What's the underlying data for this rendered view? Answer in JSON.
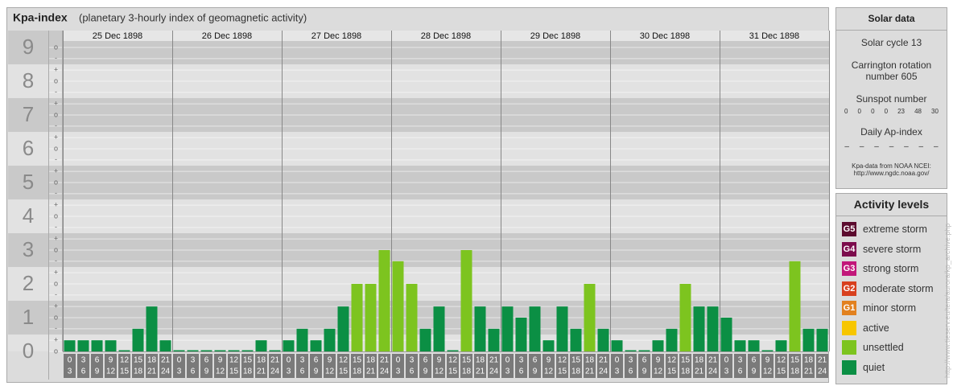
{
  "chart_data": {
    "type": "bar",
    "title": "Kpa-index",
    "subtitle": "(planetary 3-hourly index of geomagnetic activity)",
    "days": [
      "25 Dec 1898",
      "26 Dec 1898",
      "27 Dec 1898",
      "28 Dec 1898",
      "29 Dec 1898",
      "30 Dec 1898",
      "31 Dec 1898"
    ],
    "hours": [
      [
        0,
        3
      ],
      [
        3,
        6
      ],
      [
        6,
        9
      ],
      [
        9,
        12
      ],
      [
        12,
        15
      ],
      [
        15,
        18
      ],
      [
        18,
        21
      ],
      [
        21,
        24
      ]
    ],
    "values": [
      0.33,
      0.33,
      0.33,
      0.33,
      0,
      0.67,
      1.33,
      0.33,
      0,
      0,
      0,
      0,
      0,
      0,
      0.33,
      0,
      0.33,
      0.67,
      0.33,
      0.67,
      1.33,
      2,
      2,
      3,
      2.67,
      2,
      0.67,
      1.33,
      0,
      3,
      1.33,
      0.67,
      1.33,
      1,
      1.33,
      0.33,
      1.33,
      0.67,
      2,
      0.67,
      0.33,
      0,
      0,
      0.33,
      0.67,
      2,
      1.33,
      1.33,
      1,
      0.33,
      0.33,
      0,
      0.33,
      2.67,
      0.67,
      0.67
    ],
    "colors": [
      "#0b8f44",
      "#0b8f44",
      "#0b8f44",
      "#0b8f44",
      "#0b8f44",
      "#0b8f44",
      "#0b8f44",
      "#0b8f44",
      "#0b8f44",
      "#0b8f44",
      "#0b8f44",
      "#0b8f44",
      "#0b8f44",
      "#0b8f44",
      "#0b8f44",
      "#0b8f44",
      "#0b8f44",
      "#0b8f44",
      "#0b8f44",
      "#0b8f44",
      "#0b8f44",
      "#7dc41f",
      "#7dc41f",
      "#7dc41f",
      "#7dc41f",
      "#7dc41f",
      "#0b8f44",
      "#0b8f44",
      "#0b8f44",
      "#7dc41f",
      "#0b8f44",
      "#0b8f44",
      "#0b8f44",
      "#0b8f44",
      "#0b8f44",
      "#0b8f44",
      "#0b8f44",
      "#0b8f44",
      "#7dc41f",
      "#0b8f44",
      "#0b8f44",
      "#0b8f44",
      "#0b8f44",
      "#0b8f44",
      "#0b8f44",
      "#7dc41f",
      "#0b8f44",
      "#0b8f44",
      "#0b8f44",
      "#0b8f44",
      "#0b8f44",
      "#0b8f44",
      "#0b8f44",
      "#7dc41f",
      "#0b8f44",
      "#0b8f44"
    ],
    "ylim": [
      0,
      9.5
    ],
    "yticks": [
      0,
      1,
      2,
      3,
      4,
      5,
      6,
      7,
      8,
      9
    ],
    "minor_ticks": [
      {
        "value": 0,
        "label": "o"
      },
      {
        "value": 0.33,
        "label": "+"
      },
      {
        "value": 0.67,
        "label": "-"
      },
      {
        "value": 1,
        "label": "o"
      },
      {
        "value": 1.33,
        "label": "+"
      },
      {
        "value": 1.67,
        "label": "-"
      },
      {
        "value": 2,
        "label": "o"
      },
      {
        "value": 2.33,
        "label": "+"
      },
      {
        "value": 2.67,
        "label": "-"
      },
      {
        "value": 3,
        "label": "o"
      },
      {
        "value": 3.33,
        "label": "+"
      },
      {
        "value": 3.67,
        "label": "-"
      },
      {
        "value": 4,
        "label": "o"
      },
      {
        "value": 4.33,
        "label": "+"
      },
      {
        "value": 4.67,
        "label": "-"
      },
      {
        "value": 5,
        "label": "o"
      },
      {
        "value": 5.33,
        "label": "+"
      },
      {
        "value": 5.67,
        "label": "-"
      },
      {
        "value": 6,
        "label": "o"
      },
      {
        "value": 6.33,
        "label": "+"
      },
      {
        "value": 6.67,
        "label": "-"
      },
      {
        "value": 7,
        "label": "o"
      },
      {
        "value": 7.33,
        "label": "+"
      },
      {
        "value": 7.67,
        "label": "-"
      },
      {
        "value": 8,
        "label": "o"
      },
      {
        "value": 8.33,
        "label": "+"
      },
      {
        "value": 8.67,
        "label": "-"
      },
      {
        "value": 9,
        "label": "o"
      }
    ]
  },
  "solar_data": {
    "title": "Solar data",
    "solar_cycle": "Solar cycle 13",
    "carrington": "Carrington rotation number 605",
    "sunspot_label": "Sunspot number",
    "sunspot_numbers": [
      0,
      0,
      0,
      0,
      23,
      48,
      30
    ],
    "ap_label": "Daily Ap-index",
    "ap_values": [
      "–",
      "–",
      "–",
      "–",
      "–",
      "–",
      "–"
    ],
    "source": "Kpa-data from NOAA NCEI:",
    "source_url": "http://www.ngdc.noaa.gov/"
  },
  "activity_levels": {
    "title": "Activity levels",
    "items": [
      {
        "code": "G5",
        "name": "extreme storm",
        "color": "#5c0b2e"
      },
      {
        "code": "G4",
        "name": "severe storm",
        "color": "#7c0c4c"
      },
      {
        "code": "G3",
        "name": "strong storm",
        "color": "#c2177a"
      },
      {
        "code": "G2",
        "name": "moderate storm",
        "color": "#d8401e"
      },
      {
        "code": "G1",
        "name": "minor storm",
        "color": "#e2811f"
      },
      {
        "name": "active",
        "color": "#f7c600"
      },
      {
        "name": "unsettled",
        "color": "#7dc41f"
      },
      {
        "name": "quiet",
        "color": "#0b8f44"
      }
    ]
  },
  "side_note": "http://www.tieserv.eu/tera/aurora/kp_archive.php"
}
